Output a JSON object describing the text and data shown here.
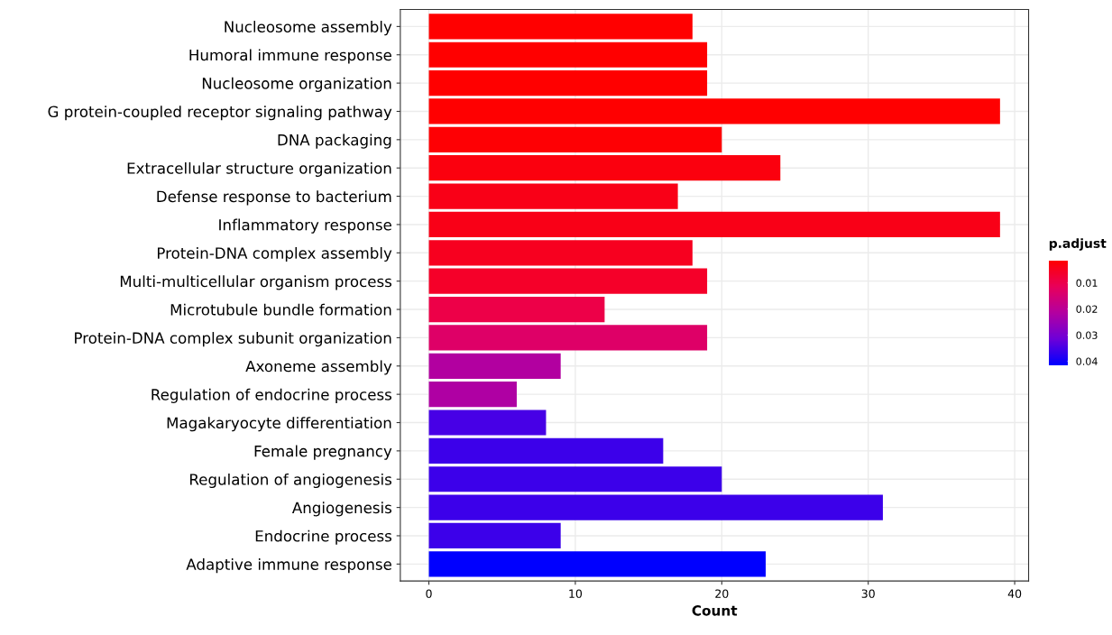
{
  "chart_data": {
    "type": "bar",
    "orientation": "horizontal",
    "xlabel": "Count",
    "clabel": "p.adjust",
    "categories": [
      "Nucleosome assembly",
      "Humoral immune response",
      "Nucleosome organization",
      "G protein-coupled receptor signaling pathway",
      "DNA packaging",
      "Extracellular structure organization",
      "Defense response to bacterium",
      "Inflammatory response",
      "Protein-DNA complex assembly",
      "Multi-multicellular organism process",
      "Microtubule bundle formation",
      "Protein-DNA complex subunit organization",
      "Axoneme assembly",
      "Regulation of endocrine process",
      "Magakaryocyte differentiation",
      "Female pregnancy",
      "Regulation of angiogenesis",
      "Angiogenesis",
      "Endocrine process",
      "Adaptive immune response"
    ],
    "values": [
      18,
      19,
      19,
      39,
      20,
      24,
      17,
      39,
      18,
      19,
      12,
      19,
      9,
      6,
      8,
      16,
      20,
      31,
      9,
      23
    ],
    "cvalues": [
      0.0015,
      0.0015,
      0.0015,
      0.0016,
      0.002,
      0.003,
      0.004,
      0.004,
      0.005,
      0.006,
      0.0094,
      0.0134,
      0.0215,
      0.022,
      0.035,
      0.036,
      0.036,
      0.036,
      0.036,
      0.0415
    ],
    "clim": [
      0.0014,
      0.0415
    ],
    "cticks": [
      0.01,
      0.02,
      0.03,
      0.04
    ],
    "xlim": [
      -1.95,
      40.95
    ],
    "xticks": [
      0,
      10,
      20,
      30,
      40
    ],
    "grid": true
  }
}
